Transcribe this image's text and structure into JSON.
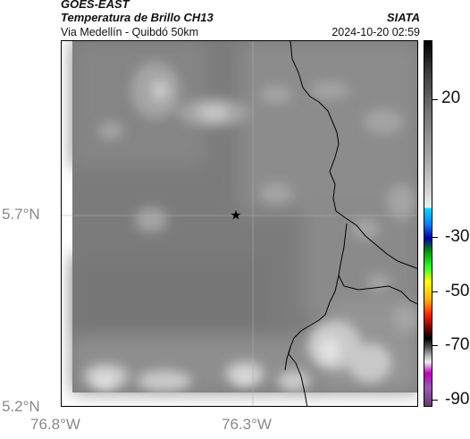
{
  "header": {
    "satellite": "GOES-EAST",
    "product": "Temperatura de Brillo CH13",
    "subtitle": "Via Medellín - Quibdó 50km",
    "agency": "SIATA",
    "datetime": "2024-10-20 02:59"
  },
  "axes": {
    "lat_labels": [
      "5.7°N",
      "5.2°N"
    ],
    "lon_labels": [
      "76.8°W",
      "76.3°W"
    ]
  },
  "colorbar": {
    "tick_labels": [
      "20",
      "-30",
      "-50",
      "-70",
      "-90"
    ]
  },
  "map": {
    "marker": "star-icon",
    "colors": {
      "cloud_base": "#7a7a7a",
      "border_line": "#000000",
      "grid": "#b0b0b0"
    }
  }
}
